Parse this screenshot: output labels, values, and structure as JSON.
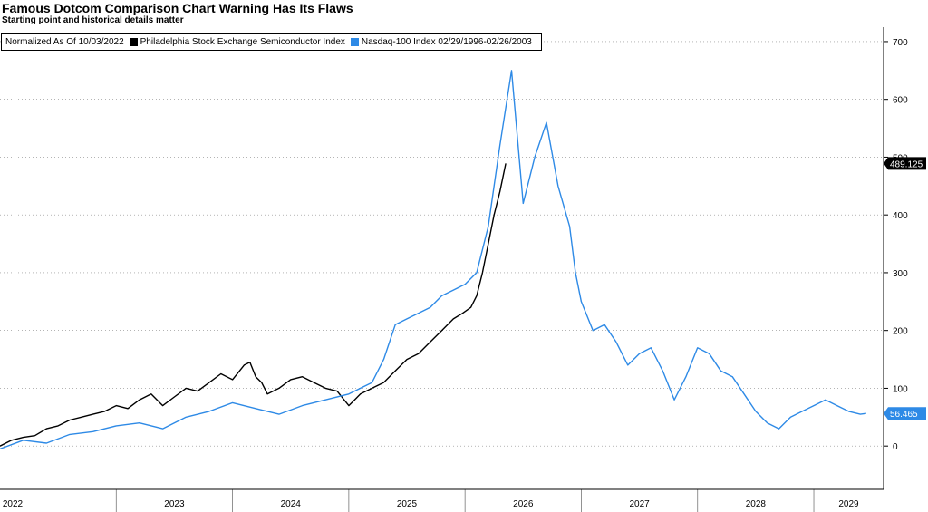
{
  "header": {
    "title": "Famous Dotcom Comparison Chart Warning Has Its Flaws",
    "subtitle": "Starting point and historical details matter"
  },
  "legend": {
    "note": "Normalized As Of 10/03/2022",
    "items": [
      {
        "label": "Philadelphia Stock Exchange Semiconductor Index",
        "color": "#000000"
      },
      {
        "label": "Nasdaq-100 Index 02/29/1996-02/26/2003",
        "color": "#2e8ae6"
      }
    ]
  },
  "chart_data": {
    "type": "line",
    "title": "Famous Dotcom Comparison Chart Warning Has Its Flaws",
    "subtitle": "Starting point and historical details matter",
    "x_ticks": [
      "2022",
      "2023",
      "2024",
      "2025",
      "2026",
      "2027",
      "2028",
      "2029"
    ],
    "x_range": [
      2022.0,
      2029.6
    ],
    "ylim": [
      -75,
      725
    ],
    "y_ticks": [
      0,
      100,
      200,
      300,
      400,
      500,
      600,
      700
    ],
    "grid": true,
    "legend_position": "top-left",
    "series": [
      {
        "name": "Philadelphia Stock Exchange Semiconductor Index",
        "color": "#000000",
        "last_value_label": "489.125",
        "x": [
          2022.0,
          2022.1,
          2022.2,
          2022.3,
          2022.4,
          2022.5,
          2022.6,
          2022.7,
          2022.8,
          2022.9,
          2023.0,
          2023.1,
          2023.2,
          2023.3,
          2023.4,
          2023.5,
          2023.6,
          2023.7,
          2023.8,
          2023.9,
          2024.0,
          2024.1,
          2024.15,
          2024.2,
          2024.25,
          2024.3,
          2024.4,
          2024.5,
          2024.6,
          2024.7,
          2024.8,
          2024.9,
          2025.0,
          2025.05,
          2025.1,
          2025.2,
          2025.3,
          2025.4,
          2025.5,
          2025.6,
          2025.7,
          2025.8,
          2025.9,
          2025.98,
          2026.05,
          2026.1,
          2026.15,
          2026.2,
          2026.25,
          2026.3,
          2026.35
        ],
        "y": [
          0,
          10,
          15,
          18,
          30,
          35,
          45,
          50,
          55,
          60,
          70,
          65,
          80,
          90,
          70,
          85,
          100,
          95,
          110,
          125,
          115,
          140,
          145,
          120,
          110,
          90,
          100,
          115,
          120,
          110,
          100,
          95,
          70,
          80,
          90,
          100,
          110,
          130,
          150,
          160,
          180,
          200,
          220,
          230,
          240,
          260,
          300,
          350,
          400,
          440,
          489.125
        ]
      },
      {
        "name": "Nasdaq-100 Index 02/29/1996-02/26/2003",
        "color": "#2e8ae6",
        "last_value_label": "56.465",
        "x": [
          2022.0,
          2022.2,
          2022.4,
          2022.6,
          2022.8,
          2023.0,
          2023.2,
          2023.4,
          2023.6,
          2023.8,
          2024.0,
          2024.2,
          2024.4,
          2024.6,
          2024.8,
          2025.0,
          2025.1,
          2025.2,
          2025.3,
          2025.4,
          2025.5,
          2025.6,
          2025.7,
          2025.8,
          2025.9,
          2026.0,
          2026.1,
          2026.2,
          2026.3,
          2026.4,
          2026.5,
          2026.6,
          2026.7,
          2026.8,
          2026.9,
          2026.95,
          2027.0,
          2027.1,
          2027.2,
          2027.3,
          2027.4,
          2027.5,
          2027.6,
          2027.7,
          2027.8,
          2027.9,
          2028.0,
          2028.1,
          2028.2,
          2028.3,
          2028.4,
          2028.5,
          2028.6,
          2028.7,
          2028.8,
          2028.9,
          2029.0,
          2029.1,
          2029.2,
          2029.3,
          2029.4,
          2029.45
        ],
        "y": [
          -5,
          10,
          5,
          20,
          25,
          35,
          40,
          30,
          50,
          60,
          75,
          65,
          55,
          70,
          80,
          90,
          100,
          110,
          150,
          210,
          220,
          230,
          240,
          260,
          270,
          280,
          300,
          380,
          520,
          650,
          420,
          500,
          560,
          450,
          380,
          300,
          250,
          200,
          210,
          180,
          140,
          160,
          170,
          130,
          80,
          120,
          170,
          160,
          130,
          120,
          90,
          60,
          40,
          30,
          50,
          60,
          70,
          80,
          70,
          60,
          55,
          56.465
        ]
      }
    ]
  }
}
